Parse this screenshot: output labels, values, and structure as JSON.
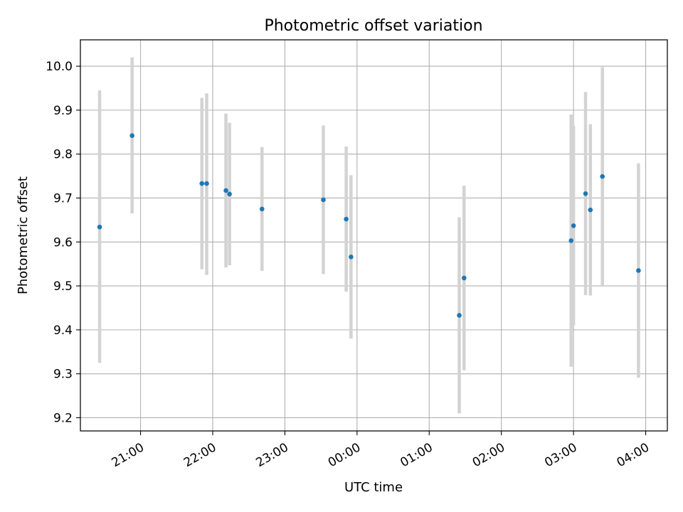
{
  "chart_data": {
    "type": "scatter",
    "title": "Photometric offset variation",
    "xlabel": "UTC time",
    "ylabel": "Photometric offset",
    "x_axis_kind": "time",
    "xlim": [
      "20:10",
      "04:18"
    ],
    "ylim": [
      9.17,
      10.06
    ],
    "grid": true,
    "x_ticks": [
      "21:00",
      "22:00",
      "23:00",
      "00:00",
      "01:00",
      "02:00",
      "03:00",
      "04:00"
    ],
    "y_ticks": [
      "9.2",
      "9.3",
      "9.4",
      "9.5",
      "9.6",
      "9.7",
      "9.8",
      "9.9",
      "10.0"
    ],
    "marker_color": "#1f77b4",
    "errorbar_color": "#d3d3d3",
    "points": [
      {
        "x": "20:26",
        "y": 9.634,
        "y_low": 9.325,
        "y_high": 9.945
      },
      {
        "x": "20:53",
        "y": 9.842,
        "y_low": 9.665,
        "y_high": 10.02
      },
      {
        "x": "21:51",
        "y": 9.733,
        "y_low": 9.538,
        "y_high": 9.928
      },
      {
        "x": "21:55",
        "y": 9.733,
        "y_low": 9.525,
        "y_high": 9.938
      },
      {
        "x": "22:11",
        "y": 9.717,
        "y_low": 9.542,
        "y_high": 9.892
      },
      {
        "x": "22:14",
        "y": 9.709,
        "y_low": 9.547,
        "y_high": 9.871
      },
      {
        "x": "22:41",
        "y": 9.675,
        "y_low": 9.534,
        "y_high": 9.816
      },
      {
        "x": "23:32",
        "y": 9.696,
        "y_low": 9.527,
        "y_high": 9.865
      },
      {
        "x": "23:51",
        "y": 9.652,
        "y_low": 9.487,
        "y_high": 9.817
      },
      {
        "x": "23:55",
        "y": 9.566,
        "y_low": 9.38,
        "y_high": 9.752
      },
      {
        "x": "01:25",
        "y": 9.433,
        "y_low": 9.21,
        "y_high": 9.656
      },
      {
        "x": "01:29",
        "y": 9.518,
        "y_low": 9.308,
        "y_high": 9.728
      },
      {
        "x": "02:58",
        "y": 9.603,
        "y_low": 9.316,
        "y_high": 9.89
      },
      {
        "x": "03:00",
        "y": 9.637,
        "y_low": 9.41,
        "y_high": 9.864
      },
      {
        "x": "03:10",
        "y": 9.71,
        "y_low": 9.479,
        "y_high": 9.941
      },
      {
        "x": "03:14",
        "y": 9.673,
        "y_low": 9.478,
        "y_high": 9.868
      },
      {
        "x": "03:24",
        "y": 9.749,
        "y_low": 9.5,
        "y_high": 9.998
      },
      {
        "x": "03:54",
        "y": 9.535,
        "y_low": 9.291,
        "y_high": 9.779
      }
    ]
  }
}
